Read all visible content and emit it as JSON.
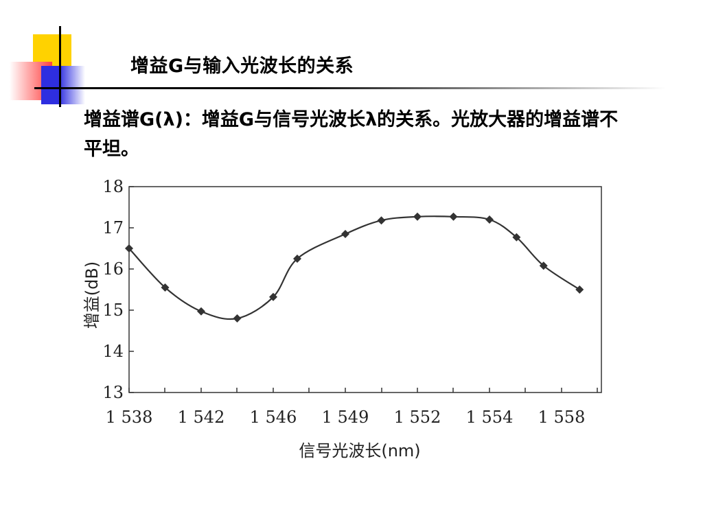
{
  "slide": {
    "title": "增益G与输入光波长的关系",
    "body": "增益谱G(λ)：增益G与信号光波长λ的关系。光放大器的增益谱不平坦。"
  },
  "colors": {
    "yellow": "#ffd200",
    "red": "#ff4040",
    "blue": "#2e2ee0",
    "ink": "#000000",
    "curve": "#333333",
    "axis": "#333333"
  },
  "chart_data": {
    "type": "line",
    "xlabel": "信号光波长(nm)",
    "ylabel": "增益(dB)",
    "ylim": [
      13,
      18
    ],
    "x_ticks": [
      1538,
      1542,
      1546,
      1549,
      1552,
      1554,
      1558
    ],
    "x_tick_labels": [
      "1 538",
      "1 542",
      "1 546",
      "1 549",
      "1 552",
      "1 554",
      "1 558"
    ],
    "y_ticks": [
      13,
      14,
      15,
      16,
      17,
      18
    ],
    "y_tick_labels": [
      "13",
      "14",
      "15",
      "16",
      "17",
      "18"
    ],
    "grid": false,
    "legend": "none",
    "series": [
      {
        "x": [
          1538,
          1540,
          1542,
          1544,
          1546,
          1547,
          1549,
          1550.5,
          1552,
          1553,
          1554,
          1555.5,
          1557,
          1559
        ],
        "values": [
          16.5,
          15.55,
          14.97,
          14.8,
          15.32,
          16.25,
          16.85,
          17.18,
          17.27,
          17.27,
          17.2,
          16.77,
          16.08,
          15.5
        ]
      }
    ]
  }
}
